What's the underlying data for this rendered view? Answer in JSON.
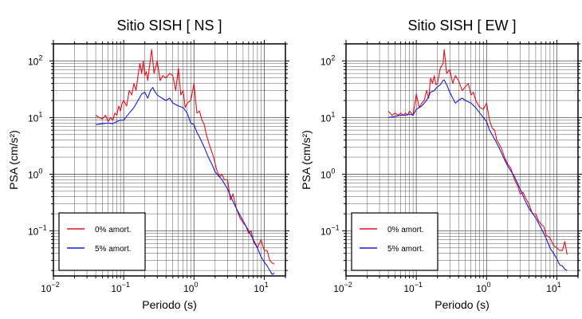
{
  "colors": {
    "undamped": "#e8101c",
    "damped": "#1a1ad4",
    "grid": "#555555",
    "frame": "#000000"
  },
  "chart_data": [
    {
      "type": "line",
      "title": "Sitio SISH [ NS ]",
      "xlabel": "Periodo (s)",
      "ylabel": "PSA (cm/s²)",
      "xscale": "log",
      "yscale": "log",
      "xlim": [
        0.01,
        20
      ],
      "ylim": [
        0.016,
        200
      ],
      "grid": true,
      "legend_position": "bottom-left",
      "x_ticks": [
        {
          "v": 0.01,
          "base": "10",
          "exp": "−2"
        },
        {
          "v": 0.1,
          "base": "10",
          "exp": "−1"
        },
        {
          "v": 1,
          "base": "10",
          "exp": "0"
        },
        {
          "v": 10,
          "base": "10",
          "exp": "1"
        }
      ],
      "y_ticks": [
        {
          "v": 0.1,
          "base": "10",
          "exp": "−1"
        },
        {
          "v": 1,
          "base": "10",
          "exp": "0"
        },
        {
          "v": 10,
          "base": "10",
          "exp": "1"
        },
        {
          "v": 100,
          "base": "10",
          "exp": "2"
        }
      ],
      "series": [
        {
          "name": "0% amort.",
          "color_key": "undamped",
          "points": [
            [
              0.04,
              11
            ],
            [
              0.045,
              10
            ],
            [
              0.05,
              9.5
            ],
            [
              0.055,
              11
            ],
            [
              0.06,
              8.5
            ],
            [
              0.065,
              10
            ],
            [
              0.07,
              9
            ],
            [
              0.075,
              12
            ],
            [
              0.08,
              11
            ],
            [
              0.085,
              16
            ],
            [
              0.09,
              13
            ],
            [
              0.095,
              18
            ],
            [
              0.1,
              20
            ],
            [
              0.11,
              16
            ],
            [
              0.12,
              30
            ],
            [
              0.13,
              25
            ],
            [
              0.14,
              40
            ],
            [
              0.15,
              30
            ],
            [
              0.16,
              55
            ],
            [
              0.17,
              90
            ],
            [
              0.18,
              60
            ],
            [
              0.19,
              100
            ],
            [
              0.2,
              55
            ],
            [
              0.21,
              65
            ],
            [
              0.22,
              45
            ],
            [
              0.23,
              70
            ],
            [
              0.25,
              160
            ],
            [
              0.27,
              60
            ],
            [
              0.3,
              100
            ],
            [
              0.33,
              45
            ],
            [
              0.36,
              55
            ],
            [
              0.4,
              50
            ],
            [
              0.45,
              60
            ],
            [
              0.5,
              55
            ],
            [
              0.55,
              30
            ],
            [
              0.6,
              75
            ],
            [
              0.65,
              25
            ],
            [
              0.7,
              30
            ],
            [
              0.75,
              15
            ],
            [
              0.8,
              18
            ],
            [
              0.9,
              20
            ],
            [
              1.0,
              40
            ],
            [
              1.1,
              12
            ],
            [
              1.2,
              13
            ],
            [
              1.3,
              9
            ],
            [
              1.4,
              7.5
            ],
            [
              1.5,
              5
            ],
            [
              1.7,
              3
            ],
            [
              1.9,
              2
            ],
            [
              2.1,
              1.2
            ],
            [
              2.3,
              0.9
            ],
            [
              2.5,
              1.0
            ],
            [
              2.7,
              0.8
            ],
            [
              3.0,
              0.8
            ],
            [
              3.3,
              0.35
            ],
            [
              3.6,
              0.45
            ],
            [
              4.0,
              0.25
            ],
            [
              4.5,
              0.17
            ],
            [
              5.0,
              0.14
            ],
            [
              5.5,
              0.12
            ],
            [
              6.0,
              0.09
            ],
            [
              6.5,
              0.1
            ],
            [
              7.0,
              0.065
            ],
            [
              8.0,
              0.05
            ],
            [
              9.0,
              0.07
            ],
            [
              10,
              0.045
            ],
            [
              11,
              0.045
            ],
            [
              12,
              0.03
            ],
            [
              13,
              0.027
            ],
            [
              14,
              0.026
            ]
          ]
        },
        {
          "name": "5% amort.",
          "color_key": "damped",
          "points": [
            [
              0.04,
              7.5
            ],
            [
              0.05,
              7.8
            ],
            [
              0.06,
              8
            ],
            [
              0.07,
              7.8
            ],
            [
              0.08,
              8.5
            ],
            [
              0.09,
              9
            ],
            [
              0.1,
              9
            ],
            [
              0.12,
              12
            ],
            [
              0.14,
              15
            ],
            [
              0.16,
              20
            ],
            [
              0.18,
              26
            ],
            [
              0.2,
              28
            ],
            [
              0.22,
              22
            ],
            [
              0.24,
              30
            ],
            [
              0.26,
              34
            ],
            [
              0.28,
              28
            ],
            [
              0.3,
              25
            ],
            [
              0.35,
              22
            ],
            [
              0.4,
              20
            ],
            [
              0.45,
              22
            ],
            [
              0.5,
              18
            ],
            [
              0.6,
              16
            ],
            [
              0.7,
              15
            ],
            [
              0.8,
              12
            ],
            [
              0.9,
              8
            ],
            [
              1.0,
              7.5
            ],
            [
              1.1,
              5.5
            ],
            [
              1.2,
              4.5
            ],
            [
              1.4,
              3
            ],
            [
              1.6,
              2
            ],
            [
              1.8,
              1.5
            ],
            [
              2.0,
              1.1
            ],
            [
              2.5,
              0.8
            ],
            [
              3.0,
              0.55
            ],
            [
              3.5,
              0.35
            ],
            [
              4.0,
              0.25
            ],
            [
              5.0,
              0.15
            ],
            [
              6.0,
              0.1
            ],
            [
              7.0,
              0.07
            ],
            [
              8.0,
              0.05
            ],
            [
              9.0,
              0.035
            ],
            [
              10,
              0.028
            ],
            [
              11,
              0.024
            ],
            [
              12,
              0.02
            ],
            [
              13,
              0.017
            ],
            [
              14,
              0.018
            ]
          ]
        }
      ]
    },
    {
      "type": "line",
      "title": "Sitio SISH [ EW ]",
      "xlabel": "Periodo (s)",
      "ylabel": "PSA (cm/s²)",
      "xscale": "log",
      "yscale": "log",
      "xlim": [
        0.01,
        20
      ],
      "ylim": [
        0.016,
        200
      ],
      "grid": true,
      "legend_position": "bottom-left",
      "x_ticks": [
        {
          "v": 0.01,
          "base": "10",
          "exp": "−2"
        },
        {
          "v": 0.1,
          "base": "10",
          "exp": "−1"
        },
        {
          "v": 1,
          "base": "10",
          "exp": "0"
        },
        {
          "v": 10,
          "base": "10",
          "exp": "1"
        }
      ],
      "y_ticks": [
        {
          "v": 0.1,
          "base": "10",
          "exp": "−1"
        },
        {
          "v": 1,
          "base": "10",
          "exp": "0"
        },
        {
          "v": 10,
          "base": "10",
          "exp": "1"
        },
        {
          "v": 100,
          "base": "10",
          "exp": "2"
        }
      ],
      "series": [
        {
          "name": "0% amort.",
          "color_key": "undamped",
          "points": [
            [
              0.04,
              13
            ],
            [
              0.045,
              11
            ],
            [
              0.05,
              12
            ],
            [
              0.055,
              11
            ],
            [
              0.06,
              12
            ],
            [
              0.065,
              11
            ],
            [
              0.07,
              12
            ],
            [
              0.075,
              11
            ],
            [
              0.08,
              13
            ],
            [
              0.085,
              12
            ],
            [
              0.09,
              11
            ],
            [
              0.1,
              26
            ],
            [
              0.11,
              15
            ],
            [
              0.12,
              18
            ],
            [
              0.13,
              20
            ],
            [
              0.14,
              30
            ],
            [
              0.15,
              22
            ],
            [
              0.16,
              50
            ],
            [
              0.17,
              40
            ],
            [
              0.18,
              55
            ],
            [
              0.19,
              38
            ],
            [
              0.2,
              40
            ],
            [
              0.22,
              75
            ],
            [
              0.24,
              90
            ],
            [
              0.25,
              160
            ],
            [
              0.27,
              60
            ],
            [
              0.3,
              70
            ],
            [
              0.33,
              40
            ],
            [
              0.36,
              55
            ],
            [
              0.4,
              45
            ],
            [
              0.45,
              30
            ],
            [
              0.5,
              35
            ],
            [
              0.55,
              40
            ],
            [
              0.6,
              25
            ],
            [
              0.65,
              28
            ],
            [
              0.7,
              20
            ],
            [
              0.8,
              15
            ],
            [
              0.9,
              14
            ],
            [
              1.0,
              18
            ],
            [
              1.1,
              9
            ],
            [
              1.2,
              6.5
            ],
            [
              1.3,
              6
            ],
            [
              1.4,
              4
            ],
            [
              1.6,
              3
            ],
            [
              1.8,
              2
            ],
            [
              2.0,
              1.5
            ],
            [
              2.2,
              1.3
            ],
            [
              2.5,
              0.8
            ],
            [
              2.8,
              0.6
            ],
            [
              3.0,
              0.45
            ],
            [
              3.3,
              0.48
            ],
            [
              3.6,
              0.38
            ],
            [
              4.0,
              0.3
            ],
            [
              4.5,
              0.2
            ],
            [
              5.0,
              0.2
            ],
            [
              5.5,
              0.15
            ],
            [
              6.0,
              0.13
            ],
            [
              6.5,
              0.12
            ],
            [
              7.0,
              0.085
            ],
            [
              8.0,
              0.075
            ],
            [
              9.0,
              0.055
            ],
            [
              10,
              0.05
            ],
            [
              11,
              0.045
            ],
            [
              12,
              0.045
            ],
            [
              13,
              0.065
            ],
            [
              14,
              0.038
            ]
          ]
        },
        {
          "name": "5% amort.",
          "color_key": "damped",
          "points": [
            [
              0.04,
              10
            ],
            [
              0.05,
              10.5
            ],
            [
              0.06,
              11
            ],
            [
              0.07,
              11
            ],
            [
              0.08,
              11.5
            ],
            [
              0.09,
              11
            ],
            [
              0.1,
              14
            ],
            [
              0.12,
              16
            ],
            [
              0.14,
              20
            ],
            [
              0.16,
              28
            ],
            [
              0.18,
              30
            ],
            [
              0.2,
              35
            ],
            [
              0.22,
              38
            ],
            [
              0.24,
              45
            ],
            [
              0.25,
              46
            ],
            [
              0.27,
              38
            ],
            [
              0.3,
              28
            ],
            [
              0.33,
              22
            ],
            [
              0.36,
              18
            ],
            [
              0.4,
              20
            ],
            [
              0.45,
              22
            ],
            [
              0.5,
              20
            ],
            [
              0.6,
              18
            ],
            [
              0.7,
              15
            ],
            [
              0.8,
              12
            ],
            [
              0.9,
              10
            ],
            [
              1.0,
              8.5
            ],
            [
              1.1,
              6
            ],
            [
              1.2,
              5
            ],
            [
              1.4,
              3.5
            ],
            [
              1.6,
              2.5
            ],
            [
              1.8,
              1.8
            ],
            [
              2.0,
              1.4
            ],
            [
              2.5,
              0.9
            ],
            [
              3.0,
              0.55
            ],
            [
              3.5,
              0.35
            ],
            [
              4.0,
              0.25
            ],
            [
              5.0,
              0.17
            ],
            [
              6.0,
              0.11
            ],
            [
              7.0,
              0.075
            ],
            [
              8.0,
              0.05
            ],
            [
              9.0,
              0.04
            ],
            [
              10,
              0.032
            ],
            [
              11,
              0.025
            ],
            [
              12,
              0.024
            ],
            [
              13,
              0.021
            ],
            [
              14,
              0.02
            ]
          ]
        }
      ]
    }
  ]
}
